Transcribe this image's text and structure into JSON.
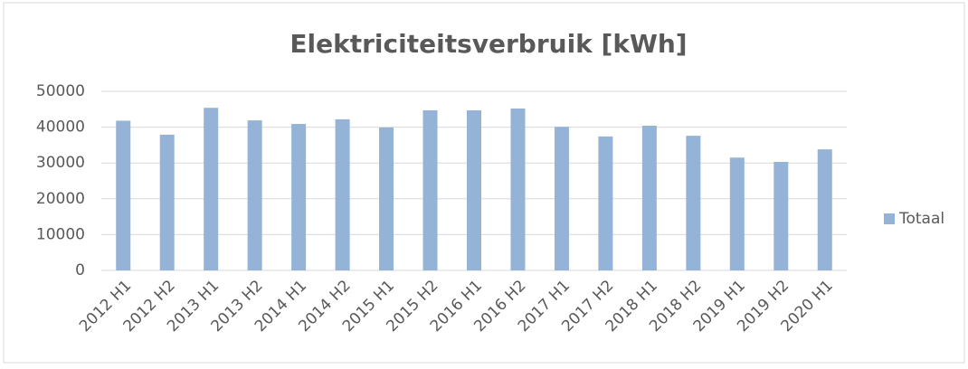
{
  "chart_data": {
    "type": "bar",
    "title": "Elektriciteitsverbruik [kWh]",
    "categories": [
      "2012 H1",
      "2012 H2",
      "2013 H1",
      "2013 H2",
      "2014 H1",
      "2014 H2",
      "2015 H1",
      "2015 H2",
      "2016 H1",
      "2016 H2",
      "2017 H1",
      "2017 H2",
      "2018 H1",
      "2018 H2",
      "2019 H1",
      "2019 H2",
      "2020 H1"
    ],
    "series": [
      {
        "name": "Totaal",
        "color": "#95b3d7",
        "values": [
          41800,
          37900,
          45400,
          41900,
          40900,
          42200,
          39900,
          44700,
          44700,
          45200,
          40100,
          37400,
          40400,
          37600,
          31500,
          30300,
          33800
        ]
      }
    ],
    "ylim": [
      0,
      50000
    ],
    "yticks": [
      0,
      10000,
      20000,
      30000,
      40000,
      50000
    ],
    "grid": true,
    "legend": "right"
  }
}
